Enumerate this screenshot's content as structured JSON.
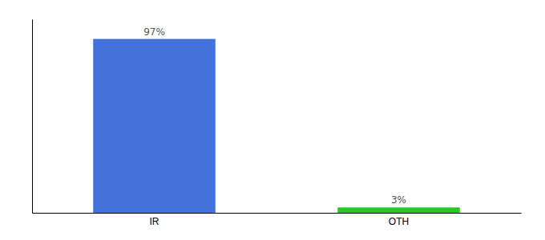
{
  "chart_data": {
    "type": "bar",
    "categories": [
      "IR",
      "OTH"
    ],
    "values": [
      97,
      3
    ],
    "value_labels": [
      "97%",
      "3%"
    ],
    "colors": [
      "#4472db",
      "#22cc22"
    ],
    "ylim": [
      0,
      108
    ],
    "yticks": [],
    "data_labels": true,
    "tick_labels": "x"
  }
}
